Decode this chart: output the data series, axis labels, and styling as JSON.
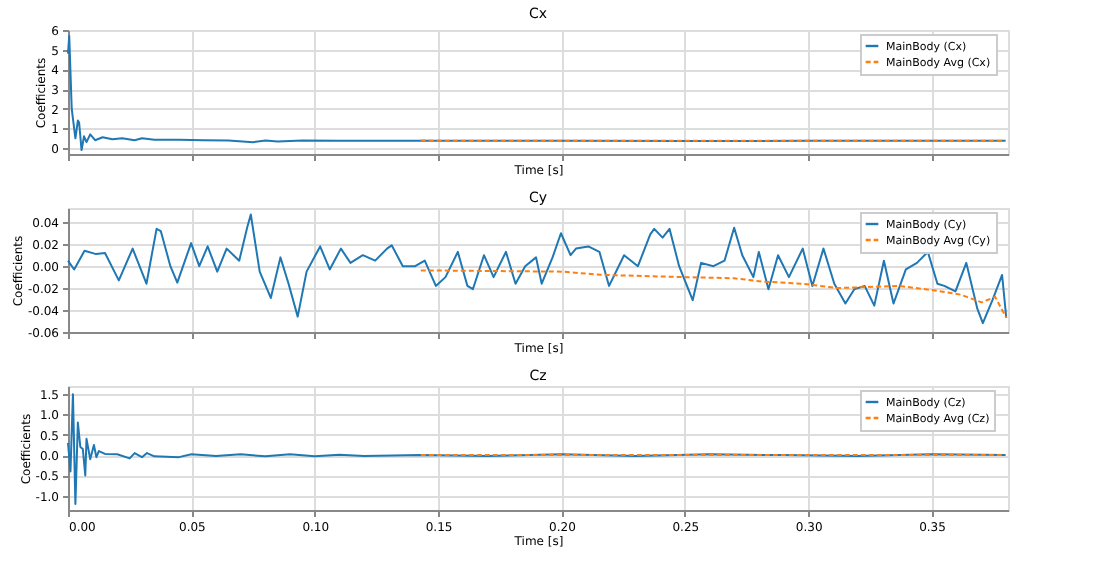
{
  "chart_data": [
    {
      "type": "line",
      "title": "Cx",
      "xlabel": "Time [s]",
      "ylabel": "Coefficients",
      "xlim": [
        0,
        0.381
      ],
      "xticks": [
        0,
        0.05,
        0.1,
        0.15,
        0.2,
        0.25,
        0.3,
        0.35
      ],
      "ylim": [
        -0.3,
        6
      ],
      "yticks": [
        0,
        1,
        2,
        3,
        4,
        5,
        6
      ],
      "grid": true,
      "legend": "top right",
      "tick_labels": "y",
      "series": [
        {
          "name": "MainBody (Cx)",
          "color": "#1f77b4",
          "line_style": "solid",
          "x": [
            0,
            0.0005,
            0.0015,
            0.003,
            0.004,
            0.0045,
            0.0055,
            0.0065,
            0.0075,
            0.009,
            0.011,
            0.014,
            0.018,
            0.022,
            0.027,
            0.03,
            0.035,
            0.045,
            0.055,
            0.065,
            0.075,
            0.08,
            0.085,
            0.095,
            0.11,
            0.13,
            0.143,
            0.2,
            0.25,
            0.3,
            0.38
          ],
          "values": [
            4.8,
            5.7,
            2.0,
            0.5,
            1.4,
            1.3,
            -0.1,
            0.6,
            0.3,
            0.7,
            0.4,
            0.55,
            0.45,
            0.5,
            0.4,
            0.5,
            0.42,
            0.42,
            0.4,
            0.38,
            0.3,
            0.38,
            0.33,
            0.38,
            0.37,
            0.37,
            0.37,
            0.37,
            0.36,
            0.37,
            0.37
          ]
        },
        {
          "name": "MainBody Avg (Cx)",
          "color": "#ff7f0e",
          "line_style": "dashed",
          "x": [
            0.143,
            0.25,
            0.38
          ],
          "values": [
            0.38,
            0.37,
            0.37
          ]
        }
      ]
    },
    {
      "type": "line",
      "title": "Cy",
      "xlabel": "Time [s]",
      "ylabel": "Coefficients",
      "xlim": [
        0,
        0.381
      ],
      "xticks": [
        0,
        0.05,
        0.1,
        0.15,
        0.2,
        0.25,
        0.3,
        0.35
      ],
      "ylim": [
        -0.06,
        0.053
      ],
      "yticks": [
        -0.06,
        -0.04,
        -0.02,
        {
          "value": 0,
          "label": "0.00"
        },
        0.02,
        0.04
      ],
      "grid": true,
      "legend": "top right",
      "tick_labels": "y",
      "series": [
        {
          "name": "MainBody (Cy)",
          "color": "#1f77b4",
          "line_style": "solid",
          "x": [
            0,
            0.0025,
            0.0067,
            0.0114,
            0.015,
            0.0206,
            0.0262,
            0.0318,
            0.0359,
            0.0376,
            0.0415,
            0.0443,
            0.0499,
            0.0532,
            0.0566,
            0.0605,
            0.0643,
            0.0694,
            0.0727,
            0.0741,
            0.0777,
            0.0822,
            0.0861,
            0.0894,
            0.0931,
            0.0967,
            0.1022,
            0.1061,
            0.1106,
            0.1145,
            0.1195,
            0.1245,
            0.1293,
            0.1312,
            0.1357,
            0.1407,
            0.1446,
            0.1491,
            0.153,
            0.158,
            0.1619,
            0.1641,
            0.1686,
            0.1725,
            0.1775,
            0.1814,
            0.1853,
            0.1897,
            0.192,
            0.1964,
            0.1998,
            0.2037,
            0.2059,
            0.2109,
            0.2154,
            0.2193,
            0.2254,
            0.231,
            0.236,
            0.2376,
            0.241,
            0.2438,
            0.2477,
            0.2532,
            0.2566,
            0.2616,
            0.2661,
            0.27,
            0.2733,
            0.2778,
            0.28,
            0.2839,
            0.2878,
            0.2922,
            0.2978,
            0.3017,
            0.3062,
            0.3106,
            0.3151,
            0.3187,
            0.3229,
            0.3268,
            0.3307,
            0.3346,
            0.3396,
            0.3441,
            0.3485,
            0.3524,
            0.3552,
            0.3597,
            0.3641,
            0.3686,
            0.3708,
            0.3747,
            0.3786,
            0.3803
          ],
          "values": [
            0.005,
            -0.003,
            0.014,
            0.011,
            0.012,
            -0.013,
            0.016,
            -0.016,
            0.034,
            0.032,
            0.0,
            -0.015,
            0.021,
            0.0,
            0.018,
            -0.005,
            0.016,
            0.005,
            0.036,
            0.047,
            -0.005,
            -0.029,
            0.008,
            -0.016,
            -0.046,
            -0.005,
            0.018,
            -0.003,
            0.016,
            0.003,
            0.01,
            0.005,
            0.016,
            0.019,
            0.0,
            0.0,
            0.005,
            -0.018,
            -0.01,
            0.013,
            -0.018,
            -0.021,
            0.01,
            -0.01,
            0.013,
            -0.016,
            0.0,
            0.008,
            -0.016,
            0.008,
            0.03,
            0.01,
            0.016,
            0.018,
            0.013,
            -0.018,
            0.01,
            0.0,
            0.029,
            0.034,
            0.026,
            0.034,
            0.0,
            -0.031,
            0.003,
            0.0,
            0.005,
            0.035,
            0.01,
            -0.01,
            0.013,
            -0.021,
            0.01,
            -0.01,
            0.016,
            -0.018,
            0.016,
            -0.016,
            -0.034,
            -0.021,
            -0.018,
            -0.036,
            0.005,
            -0.034,
            -0.003,
            0.003,
            0.013,
            -0.016,
            -0.018,
            -0.023,
            0.003,
            -0.039,
            -0.052,
            -0.031,
            -0.008,
            -0.047
          ]
        },
        {
          "name": "MainBody Avg (Cy)",
          "color": "#ff7f0e",
          "line_style": "dashed",
          "x": [
            0.143,
            0.1502,
            0.2003,
            0.217,
            0.2505,
            0.27,
            0.2811,
            0.2978,
            0.3118,
            0.3368,
            0.3508,
            0.3619,
            0.3703,
            0.3758,
            0.3803
          ],
          "values": [
            -0.004,
            -0.004,
            -0.005,
            -0.008,
            -0.01,
            -0.011,
            -0.014,
            -0.016,
            -0.02,
            -0.018,
            -0.022,
            -0.026,
            -0.033,
            -0.028,
            -0.047
          ]
        }
      ]
    },
    {
      "type": "line",
      "title": "Cz",
      "xlabel": "Time [s]",
      "ylabel": "Coefficients",
      "xlim": [
        0,
        0.381
      ],
      "xticks": [
        {
          "value": 0,
          "label": "0.00"
        },
        0.05,
        {
          "value": 0.1,
          "label": "0.10"
        },
        0.15,
        {
          "value": 0.2,
          "label": "0.20"
        },
        0.25,
        {
          "value": 0.3,
          "label": "0.30"
        },
        0.35
      ],
      "ylim": [
        -1.35,
        1.7
      ],
      "yticks": [
        {
          "value": -1,
          "label": "-1.0"
        },
        -0.5,
        {
          "value": 0,
          "label": "0.0"
        },
        0.5,
        {
          "value": 1,
          "label": "1.0"
        },
        1.5
      ],
      "grid": true,
      "legend": "top right",
      "series": [
        {
          "name": "MainBody (Cz)",
          "color": "#1f77b4",
          "line_style": "solid",
          "x": [
            0,
            0.001,
            0.002,
            0.003,
            0.004,
            0.005,
            0.006,
            0.007,
            0.0075,
            0.009,
            0.0105,
            0.0115,
            0.0125,
            0.015,
            0.02,
            0.025,
            0.027,
            0.03,
            0.032,
            0.035,
            0.045,
            0.05,
            0.06,
            0.07,
            0.08,
            0.09,
            0.1,
            0.11,
            0.12,
            0.143,
            0.17,
            0.2,
            0.23,
            0.26,
            0.29,
            0.32,
            0.35,
            0.38
          ],
          "values": [
            0.3,
            -0.4,
            1.5,
            -1.2,
            0.8,
            0.2,
            0.15,
            -0.5,
            0.4,
            -0.1,
            0.25,
            -0.05,
            0.1,
            0.03,
            0.02,
            -0.08,
            0.05,
            -0.05,
            0.05,
            -0.03,
            -0.05,
            0.02,
            -0.02,
            0.02,
            -0.03,
            0.02,
            -0.03,
            0.01,
            -0.02,
            0.0,
            -0.02,
            0.02,
            -0.02,
            0.02,
            0.0,
            -0.02,
            0.02,
            0.0
          ]
        },
        {
          "name": "MainBody Avg (Cz)",
          "color": "#ff7f0e",
          "line_style": "dashed",
          "x": [
            0.143,
            0.38
          ],
          "values": [
            0.0,
            0.0
          ]
        }
      ]
    }
  ]
}
